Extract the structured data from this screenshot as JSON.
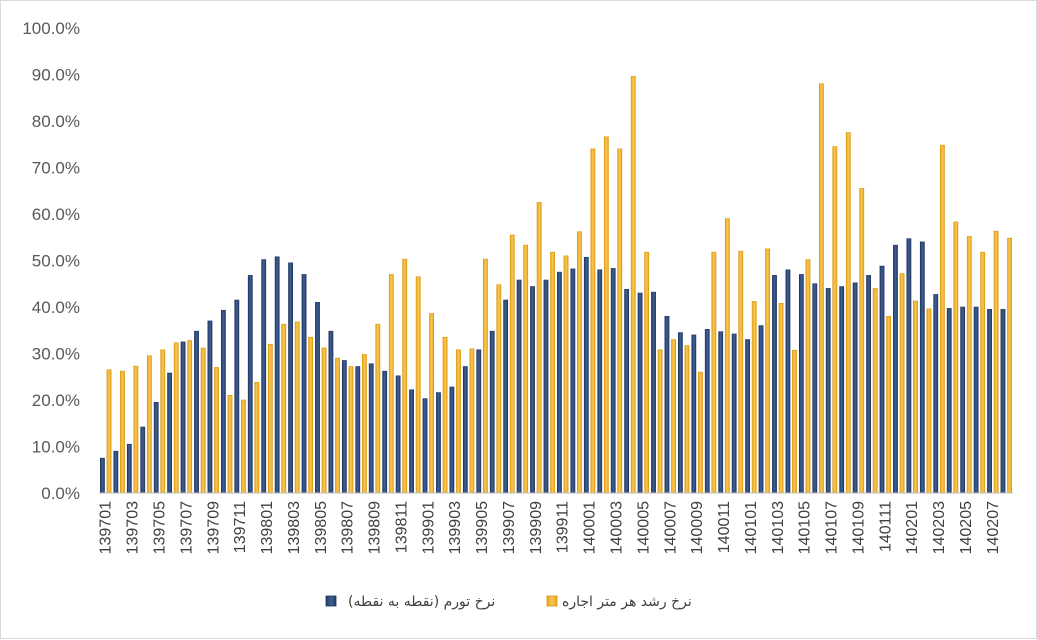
{
  "chart_data": {
    "type": "bar",
    "categories": [
      "139701",
      "139702",
      "139703",
      "139704",
      "139705",
      "139706",
      "139707",
      "139708",
      "139709",
      "139710",
      "139711",
      "139712",
      "139801",
      "139802",
      "139803",
      "139804",
      "139805",
      "139806",
      "139807",
      "139808",
      "139809",
      "139810",
      "139811",
      "139812",
      "139901",
      "139902",
      "139903",
      "139904",
      "139905",
      "139906",
      "139907",
      "139908",
      "139909",
      "139910",
      "139911",
      "139912",
      "140001",
      "140002",
      "140003",
      "140004",
      "140005",
      "140006",
      "140007",
      "140008",
      "140009",
      "140010",
      "140011",
      "140012",
      "140101",
      "140102",
      "140103",
      "140104",
      "140105",
      "140106",
      "140107",
      "140108",
      "140109",
      "140110",
      "140111",
      "140112",
      "140201",
      "140202",
      "140203",
      "140204",
      "140205",
      "140206",
      "140207",
      "140208"
    ],
    "x_tick_labels": [
      "139701",
      "139703",
      "139705",
      "139707",
      "139709",
      "139711",
      "139801",
      "139803",
      "139805",
      "139807",
      "139809",
      "139811",
      "139901",
      "139903",
      "139905",
      "139907",
      "139909",
      "139911",
      "140001",
      "140003",
      "140005",
      "140007",
      "140009",
      "140011",
      "140101",
      "140103",
      "140105",
      "140107",
      "140109",
      "140111",
      "140201",
      "140203",
      "140205",
      "140207"
    ],
    "series": [
      {
        "name": "نرخ تورم (نقطه به نقطه)",
        "color": "#2f4b7c",
        "values": [
          7.5,
          9.0,
          10.5,
          14.2,
          19.5,
          25.8,
          32.5,
          34.8,
          37.0,
          39.3,
          41.5,
          46.8,
          50.2,
          50.8,
          49.5,
          47.0,
          41.0,
          34.8,
          28.5,
          27.2,
          27.8,
          26.2,
          25.2,
          22.2,
          20.3,
          21.6,
          22.8,
          27.2,
          30.8,
          34.8,
          41.5,
          45.8,
          44.4,
          45.8,
          47.5,
          48.2,
          50.7,
          48.0,
          48.3,
          43.8,
          43.0,
          43.2,
          38.0,
          34.5,
          34.0,
          35.2,
          34.7,
          34.2,
          33.0,
          36.0,
          46.8,
          48.0,
          47.0,
          45.0,
          44.0,
          44.4,
          45.2,
          46.8,
          48.8,
          53.3,
          54.7,
          54.0,
          42.7,
          39.7,
          40.0,
          40.0,
          39.5,
          39.5
        ]
      },
      {
        "name": "نرخ رشد هر متر اجاره",
        "color": "#f5b731",
        "values": [
          26.5,
          26.2,
          27.3,
          29.5,
          30.8,
          32.3,
          32.8,
          31.2,
          27.0,
          21.0,
          20.0,
          23.8,
          32.0,
          36.3,
          36.8,
          33.5,
          31.2,
          29.0,
          27.2,
          29.8,
          36.3,
          47.0,
          50.3,
          46.5,
          38.6,
          33.5,
          30.8,
          31.0,
          50.3,
          44.8,
          55.5,
          53.3,
          62.5,
          51.8,
          51.0,
          56.2,
          74.0,
          76.6,
          74.0,
          89.6,
          51.8,
          30.8,
          33.0,
          31.7,
          26.0,
          51.8,
          59.0,
          52.0,
          41.2,
          52.5,
          40.8,
          30.7,
          50.2,
          88.0,
          74.5,
          77.5,
          65.5,
          44.0,
          38.0,
          47.2,
          41.3,
          39.6,
          74.8,
          58.3,
          55.2,
          51.8,
          56.3,
          54.8
        ]
      }
    ],
    "y_tick_labels": [
      "0.0%",
      "10.0%",
      "20.0%",
      "30.0%",
      "40.0%",
      "50.0%",
      "60.0%",
      "70.0%",
      "80.0%",
      "90.0%",
      "100.0%"
    ],
    "ylim": [
      0,
      100
    ],
    "y_unit": "%",
    "grid": false,
    "legend_position": "bottom",
    "title": "",
    "xlabel": "",
    "ylabel": ""
  }
}
